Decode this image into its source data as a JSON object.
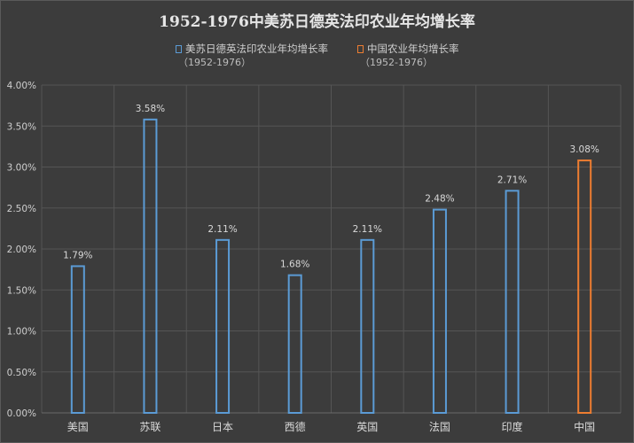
{
  "colors": {
    "background": "#3c3c3c",
    "grid": "#555555",
    "others": "#5b9bd5",
    "china": "#ed7d31"
  },
  "chart_data": {
    "type": "bar",
    "title": "1952-1976中美苏日德英法印农业年均增长率",
    "categories": [
      "美国",
      "苏联",
      "日本",
      "西德",
      "英国",
      "法国",
      "印度",
      "中国"
    ],
    "series": [
      {
        "name": "美苏日德英法印农业年均增长率",
        "name_sub": "（1952-1976）",
        "color": "#5b9bd5",
        "values": [
          1.79,
          3.58,
          2.11,
          1.68,
          2.11,
          2.48,
          2.71,
          null
        ],
        "labels": [
          "1.79%",
          "3.58%",
          "2.11%",
          "1.68%",
          "2.11%",
          "2.48%",
          "2.71%",
          ""
        ]
      },
      {
        "name": "中国农业年均增长率",
        "name_sub": "（1952-1976）",
        "color": "#ed7d31",
        "values": [
          null,
          null,
          null,
          null,
          null,
          null,
          null,
          3.08
        ],
        "labels": [
          "",
          "",
          "",
          "",
          "",
          "",
          "",
          "3.08%"
        ]
      }
    ],
    "ylim": [
      0,
      4
    ],
    "yticks": [
      0,
      0.5,
      1.0,
      1.5,
      2.0,
      2.5,
      3.0,
      3.5,
      4.0
    ],
    "ytick_labels": [
      "0.00%",
      "0.50%",
      "1.00%",
      "1.50%",
      "2.00%",
      "2.50%",
      "3.00%",
      "3.50%",
      "4.00%"
    ],
    "grid": true,
    "legend": "top-center"
  }
}
